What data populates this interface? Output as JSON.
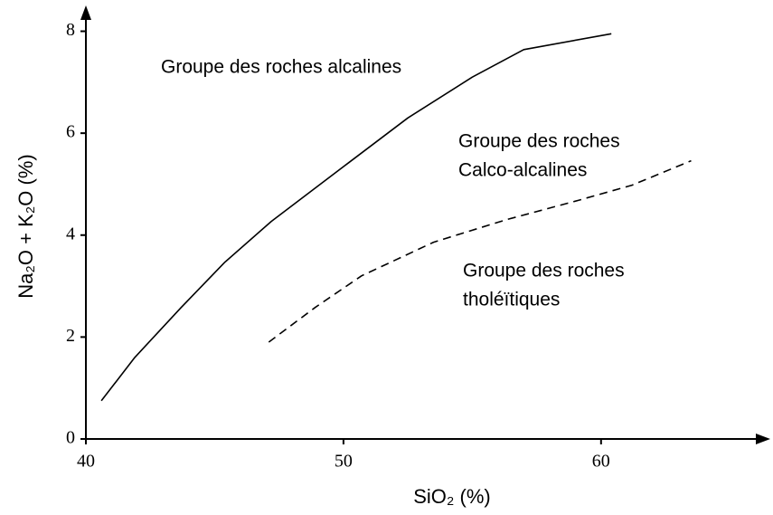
{
  "chart_data": {
    "type": "line",
    "xlabel": "SiO₂ (%)",
    "ylabel": "Na₂O + K₂O (%)",
    "annotations": [
      [
        "Groupe des roches alcalines"
      ],
      [
        "Groupe des roches",
        "Calco-alcalines"
      ],
      [
        "Groupe des roches",
        "tholéïtiques"
      ]
    ],
    "series": [
      {
        "color": "#000000",
        "dash": false,
        "x": [
          40.6,
          41.9,
          43.7,
          45.4,
          47.2,
          50.2,
          52.5,
          55,
          57,
          60.4
        ],
        "values": [
          0.75,
          1.6,
          2.58,
          3.47,
          4.27,
          5.42,
          6.3,
          7.1,
          7.64,
          7.95
        ]
      },
      {
        "color": "#000000",
        "dash": true,
        "x": [
          47.1,
          48.9,
          50.7,
          53.5,
          56.3,
          59.1,
          61.2,
          63.5
        ],
        "values": [
          1.9,
          2.58,
          3.2,
          3.86,
          4.3,
          4.68,
          4.98,
          5.46
        ]
      }
    ],
    "xlim": [
      40,
      66.5
    ],
    "ylim": [
      0,
      8.4
    ],
    "xticks": [
      40,
      50,
      60
    ],
    "yticks": [
      0,
      2,
      4,
      6,
      8
    ],
    "grid": false
  }
}
